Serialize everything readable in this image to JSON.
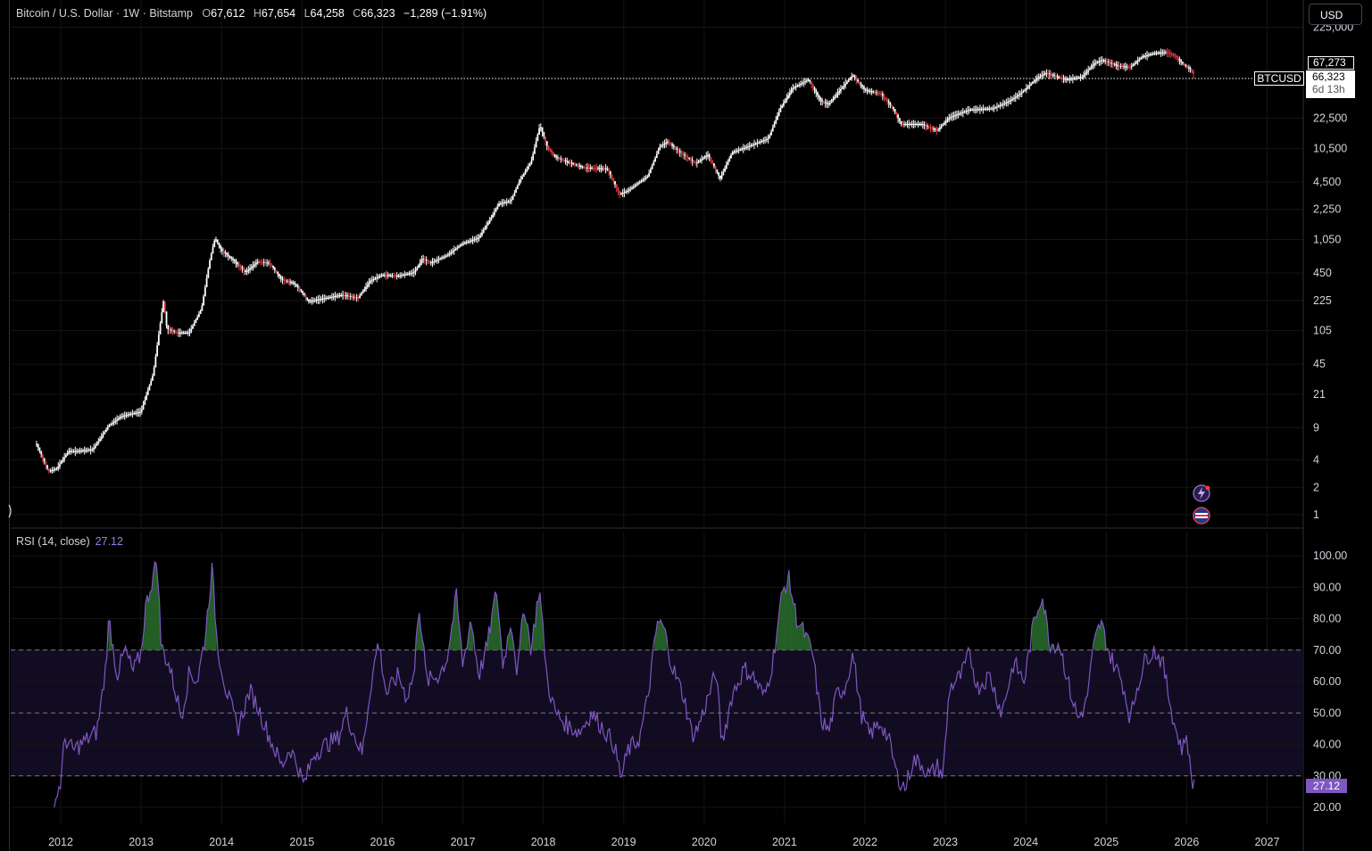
{
  "header": {
    "symbol": "Bitcoin / U.S. Dollar · 1W · Bitstamp",
    "open_label": "O",
    "open": "67,612",
    "high_label": "H",
    "high": "67,654",
    "low_label": "L",
    "low": "64,258",
    "close_label": "C",
    "close": "66,323",
    "change": "−1,289 (−1.91%)"
  },
  "currency_button": "USD",
  "price_tags": {
    "high_tag": "67,273",
    "symbol_tag": "BTCUSD",
    "last_price": "66,323",
    "countdown": "6d 13h"
  },
  "rsi_panel": {
    "title": "RSI (14, close)",
    "value": "27.12"
  },
  "colors": {
    "background": "#000000",
    "up_candle": "#ffffff",
    "down_candle": "#e0393e",
    "rsi_line": "#7e57c2",
    "rsi_band_fill": "#120c22",
    "overbought_fill": "#2e7d32",
    "last_price_tag": "#ffffff",
    "rsi_value_tag": "#7e57c2"
  },
  "icons": [
    "lightning-icon",
    "us-flag-icon"
  ],
  "chart_data": [
    {
      "type": "line",
      "name": "price",
      "scale": "log",
      "yticks": [
        "225,000",
        "22,500",
        "10,500",
        "4,500",
        "2,250",
        "1,050",
        "450",
        "225",
        "105",
        "45",
        "21",
        "9",
        "4",
        "2",
        "1"
      ],
      "ytick_values": [
        225000,
        22500,
        10500,
        4500,
        2250,
        1050,
        450,
        225,
        105,
        45,
        21,
        9,
        4,
        2,
        1
      ],
      "xticks": [
        "2012",
        "2013",
        "2014",
        "2015",
        "2016",
        "2017",
        "2018",
        "2019",
        "2020",
        "2021",
        "2022",
        "2023",
        "2024",
        "2025",
        "2026",
        "2027"
      ],
      "last_price": 66323,
      "series": [
        {
          "values": [
            [
              2011.7,
              6
            ],
            [
              2011.85,
              3
            ],
            [
              2011.95,
              3.2
            ],
            [
              2012.1,
              5
            ],
            [
              2012.2,
              5.0
            ],
            [
              2012.4,
              5.2
            ],
            [
              2012.6,
              9.5
            ],
            [
              2012.75,
              12
            ],
            [
              2012.9,
              13
            ],
            [
              2013.0,
              13.5
            ],
            [
              2013.15,
              35
            ],
            [
              2013.28,
              230
            ],
            [
              2013.32,
              110
            ],
            [
              2013.45,
              100
            ],
            [
              2013.6,
              100
            ],
            [
              2013.75,
              180
            ],
            [
              2013.85,
              600
            ],
            [
              2013.92,
              1100
            ],
            [
              2014.0,
              800
            ],
            [
              2014.15,
              620
            ],
            [
              2014.3,
              460
            ],
            [
              2014.45,
              600
            ],
            [
              2014.6,
              580
            ],
            [
              2014.75,
              380
            ],
            [
              2014.9,
              350
            ],
            [
              2015.0,
              280
            ],
            [
              2015.08,
              220
            ],
            [
              2015.3,
              240
            ],
            [
              2015.5,
              260
            ],
            [
              2015.7,
              240
            ],
            [
              2015.85,
              370
            ],
            [
              2016.0,
              430
            ],
            [
              2016.2,
              420
            ],
            [
              2016.4,
              460
            ],
            [
              2016.5,
              650
            ],
            [
              2016.6,
              580
            ],
            [
              2016.8,
              700
            ],
            [
              2017.0,
              950
            ],
            [
              2017.2,
              1100
            ],
            [
              2017.35,
              1800
            ],
            [
              2017.45,
              2600
            ],
            [
              2017.6,
              2800
            ],
            [
              2017.7,
              4500
            ],
            [
              2017.85,
              7500
            ],
            [
              2017.96,
              19000
            ],
            [
              2018.05,
              11000
            ],
            [
              2018.15,
              8500
            ],
            [
              2018.3,
              7500
            ],
            [
              2018.5,
              6500
            ],
            [
              2018.8,
              6300
            ],
            [
              2018.95,
              3300
            ],
            [
              2019.05,
              3600
            ],
            [
              2019.3,
              5200
            ],
            [
              2019.45,
              11000
            ],
            [
              2019.55,
              12500
            ],
            [
              2019.7,
              9500
            ],
            [
              2019.9,
              7200
            ],
            [
              2020.05,
              9000
            ],
            [
              2020.2,
              4900
            ],
            [
              2020.35,
              9500
            ],
            [
              2020.6,
              11500
            ],
            [
              2020.8,
              13500
            ],
            [
              2020.95,
              29000
            ],
            [
              2021.1,
              48000
            ],
            [
              2021.3,
              60000
            ],
            [
              2021.45,
              35000
            ],
            [
              2021.55,
              32000
            ],
            [
              2021.7,
              47000
            ],
            [
              2021.85,
              67000
            ],
            [
              2022.0,
              46000
            ],
            [
              2022.2,
              42000
            ],
            [
              2022.35,
              29000
            ],
            [
              2022.45,
              19500
            ],
            [
              2022.7,
              19500
            ],
            [
              2022.9,
              16500
            ],
            [
              2023.05,
              23000
            ],
            [
              2023.3,
              28000
            ],
            [
              2023.6,
              29000
            ],
            [
              2023.8,
              35000
            ],
            [
              2023.95,
              43000
            ],
            [
              2024.15,
              63000
            ],
            [
              2024.25,
              71000
            ],
            [
              2024.5,
              60000
            ],
            [
              2024.7,
              64000
            ],
            [
              2024.85,
              90000
            ],
            [
              2024.95,
              98000
            ],
            [
              2025.15,
              85000
            ],
            [
              2025.3,
              82000
            ],
            [
              2025.45,
              107000
            ],
            [
              2025.6,
              117000
            ],
            [
              2025.75,
              120000
            ],
            [
              2025.85,
              110000
            ],
            [
              2025.95,
              90000
            ],
            [
              2026.05,
              77000
            ],
            [
              2026.1,
              66323
            ]
          ]
        }
      ]
    },
    {
      "type": "line",
      "name": "RSI (14, close)",
      "yticks": [
        "100.00",
        "90.00",
        "80.00",
        "70.00",
        "60.00",
        "50.00",
        "40.00",
        "30.00",
        "20.00"
      ],
      "ylim": [
        17,
        101
      ],
      "bands": [
        70,
        50,
        30
      ],
      "last_value": 27.12,
      "series": [
        {
          "values": [
            [
              2011.92,
              21
            ],
            [
              2012.0,
              28
            ],
            [
              2012.05,
              42
            ],
            [
              2012.15,
              38
            ],
            [
              2012.3,
              41
            ],
            [
              2012.45,
              44
            ],
            [
              2012.55,
              62
            ],
            [
              2012.6,
              80
            ],
            [
              2012.7,
              62
            ],
            [
              2012.8,
              70
            ],
            [
              2012.9,
              63
            ],
            [
              2013.0,
              69
            ],
            [
              2013.05,
              83
            ],
            [
              2013.2,
              99
            ],
            [
              2013.25,
              71
            ],
            [
              2013.35,
              65
            ],
            [
              2013.5,
              49
            ],
            [
              2013.6,
              63
            ],
            [
              2013.7,
              60
            ],
            [
              2013.8,
              75
            ],
            [
              2013.88,
              96
            ],
            [
              2013.95,
              71
            ],
            [
              2014.05,
              58
            ],
            [
              2014.2,
              45
            ],
            [
              2014.35,
              57
            ],
            [
              2014.45,
              52
            ],
            [
              2014.6,
              42
            ],
            [
              2014.75,
              33
            ],
            [
              2014.85,
              39
            ],
            [
              2014.95,
              33
            ],
            [
              2015.02,
              27
            ],
            [
              2015.15,
              37
            ],
            [
              2015.3,
              40
            ],
            [
              2015.45,
              42
            ],
            [
              2015.55,
              50
            ],
            [
              2015.65,
              43
            ],
            [
              2015.75,
              37
            ],
            [
              2015.85,
              58
            ],
            [
              2015.95,
              73
            ],
            [
              2016.05,
              56
            ],
            [
              2016.2,
              62
            ],
            [
              2016.3,
              55
            ],
            [
              2016.4,
              63
            ],
            [
              2016.45,
              86
            ],
            [
              2016.55,
              60
            ],
            [
              2016.7,
              62
            ],
            [
              2016.8,
              67
            ],
            [
              2016.92,
              87
            ],
            [
              2017.0,
              65
            ],
            [
              2017.1,
              80
            ],
            [
              2017.2,
              62
            ],
            [
              2017.3,
              71
            ],
            [
              2017.42,
              89
            ],
            [
              2017.5,
              65
            ],
            [
              2017.6,
              80
            ],
            [
              2017.68,
              62
            ],
            [
              2017.76,
              85
            ],
            [
              2017.85,
              70
            ],
            [
              2017.95,
              90
            ],
            [
              2018.05,
              60
            ],
            [
              2018.15,
              50
            ],
            [
              2018.3,
              46
            ],
            [
              2018.45,
              44
            ],
            [
              2018.6,
              50
            ],
            [
              2018.75,
              45
            ],
            [
              2018.88,
              40
            ],
            [
              2018.97,
              29
            ],
            [
              2019.05,
              38
            ],
            [
              2019.2,
              42
            ],
            [
              2019.3,
              55
            ],
            [
              2019.42,
              79
            ],
            [
              2019.5,
              77
            ],
            [
              2019.6,
              65
            ],
            [
              2019.75,
              55
            ],
            [
              2019.85,
              43
            ],
            [
              2019.92,
              45
            ],
            [
              2020.05,
              55
            ],
            [
              2020.15,
              63
            ],
            [
              2020.22,
              40
            ],
            [
              2020.35,
              56
            ],
            [
              2020.5,
              64
            ],
            [
              2020.6,
              62
            ],
            [
              2020.75,
              55
            ],
            [
              2020.85,
              66
            ],
            [
              2020.97,
              88
            ],
            [
              2021.05,
              93
            ],
            [
              2021.15,
              80
            ],
            [
              2021.25,
              75
            ],
            [
              2021.35,
              69
            ],
            [
              2021.45,
              48
            ],
            [
              2021.55,
              44
            ],
            [
              2021.65,
              56
            ],
            [
              2021.75,
              58
            ],
            [
              2021.85,
              69
            ],
            [
              2021.95,
              50
            ],
            [
              2022.05,
              43
            ],
            [
              2022.2,
              47
            ],
            [
              2022.3,
              41
            ],
            [
              2022.4,
              30
            ],
            [
              2022.5,
              26
            ],
            [
              2022.6,
              35
            ],
            [
              2022.7,
              34
            ],
            [
              2022.8,
              30
            ],
            [
              2022.9,
              33
            ],
            [
              2022.97,
              30
            ],
            [
              2023.05,
              58
            ],
            [
              2023.2,
              62
            ],
            [
              2023.3,
              69
            ],
            [
              2023.4,
              58
            ],
            [
              2023.55,
              62
            ],
            [
              2023.7,
              50
            ],
            [
              2023.85,
              66
            ],
            [
              2023.98,
              60
            ],
            [
              2024.1,
              79
            ],
            [
              2024.2,
              88
            ],
            [
              2024.3,
              72
            ],
            [
              2024.42,
              72
            ],
            [
              2024.55,
              57
            ],
            [
              2024.65,
              48
            ],
            [
              2024.75,
              53
            ],
            [
              2024.85,
              72
            ],
            [
              2024.93,
              79
            ],
            [
              2025.05,
              68
            ],
            [
              2025.2,
              60
            ],
            [
              2025.3,
              48
            ],
            [
              2025.38,
              58
            ],
            [
              2025.5,
              68
            ],
            [
              2025.6,
              70
            ],
            [
              2025.7,
              66
            ],
            [
              2025.78,
              55
            ],
            [
              2025.86,
              45
            ],
            [
              2025.95,
              38
            ],
            [
              2026.0,
              44
            ],
            [
              2026.05,
              30
            ],
            [
              2026.1,
              27.12
            ]
          ]
        }
      ]
    }
  ]
}
